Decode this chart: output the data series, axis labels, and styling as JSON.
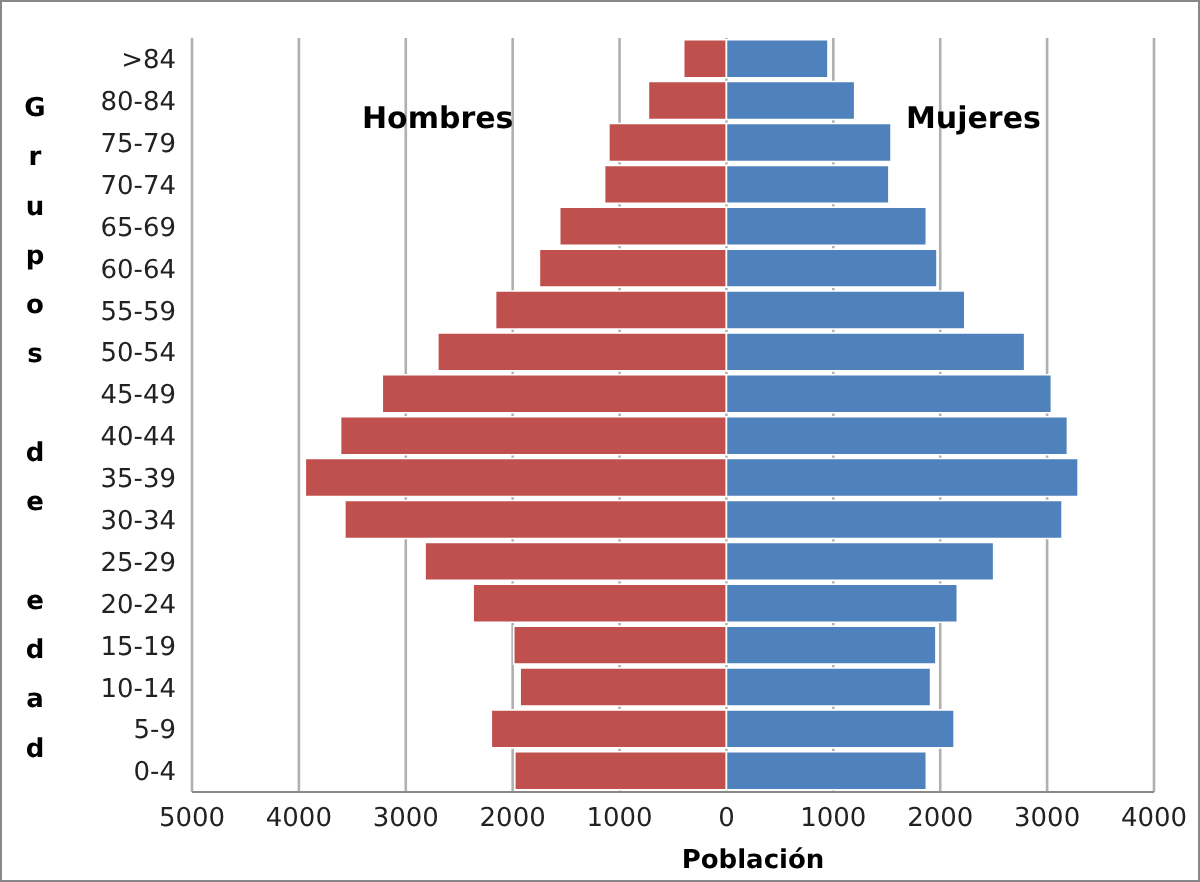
{
  "chart_data": {
    "type": "bar",
    "orientation": "horizontal",
    "stacked": true,
    "xlabel": "Población",
    "ylabel": "Grupos de edad",
    "categories": [
      ">84",
      "80-84",
      "75-79",
      "70-74",
      "65-69",
      "60-64",
      "55-59",
      "50-54",
      "45-49",
      "40-44",
      "35-39",
      "30-34",
      "25-29",
      "20-24",
      "15-19",
      "10-14",
      "5-9",
      "0-4"
    ],
    "series": [
      {
        "name": "Hombres",
        "color": "#c0504d",
        "values": [
          -400,
          -730,
          -1100,
          -1140,
          -1560,
          -1750,
          -2160,
          -2700,
          -3220,
          -3610,
          -3940,
          -3570,
          -2820,
          -2370,
          -1990,
          -1930,
          -2200,
          -1980
        ]
      },
      {
        "name": "Mujeres",
        "color": "#4f81bd",
        "values": [
          950,
          1200,
          1540,
          1520,
          1870,
          1970,
          2230,
          2790,
          3040,
          3190,
          3290,
          3140,
          2500,
          2160,
          1960,
          1910,
          2130,
          1870
        ]
      }
    ],
    "xlim": [
      -5000,
      4000
    ],
    "xticks": [
      {
        "value": -5000,
        "label": "5000"
      },
      {
        "value": -4000,
        "label": "4000"
      },
      {
        "value": -3000,
        "label": "3000"
      },
      {
        "value": -2000,
        "label": "2000"
      },
      {
        "value": -1000,
        "label": "1000"
      },
      0,
      1000,
      2000,
      3000,
      4000
    ],
    "grid": "x",
    "legend": false
  }
}
